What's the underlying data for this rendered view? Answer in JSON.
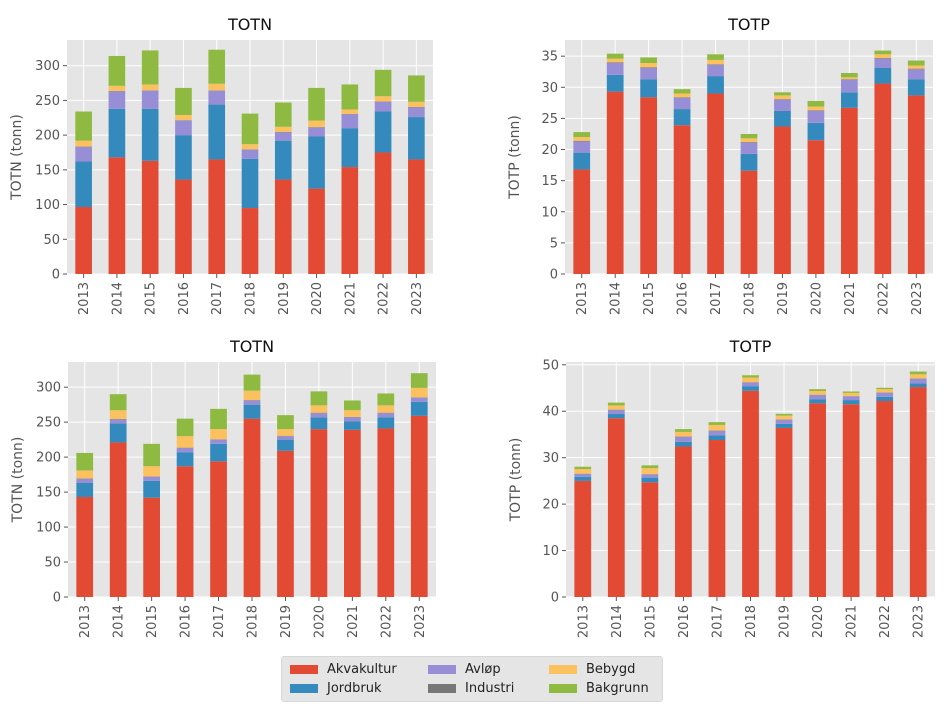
{
  "legend": {
    "placement": "bottom-center",
    "items": [
      {
        "label": "Akvakultur",
        "color": "#E24A33"
      },
      {
        "label": "Jordbruk",
        "color": "#348ABD"
      },
      {
        "label": "Avløp",
        "color": "#988ED5"
      },
      {
        "label": "Industri",
        "color": "#777777"
      },
      {
        "label": "Bebygd",
        "color": "#FBC15E"
      },
      {
        "label": "Bakgrunn",
        "color": "#8EBA42"
      }
    ]
  },
  "chart_data": [
    {
      "type": "bar",
      "stacked": true,
      "title": "TOTN",
      "ylabel": "TOTN (tonn)",
      "xlabel": "",
      "categories": [
        "2013",
        "2014",
        "2015",
        "2016",
        "2017",
        "2018",
        "2019",
        "2020",
        "2021",
        "2022",
        "2023"
      ],
      "ylim": [
        0,
        337
      ],
      "yticks": [
        0,
        50,
        100,
        150,
        200,
        250,
        300
      ],
      "grid": true,
      "series": [
        {
          "name": "Akvakultur",
          "values": [
            96.5,
            168,
            163,
            136,
            165,
            95,
            136,
            123,
            154,
            175,
            165
          ]
        },
        {
          "name": "Jordbruk",
          "values": [
            65.5,
            70,
            75,
            64,
            79,
            71,
            56,
            75,
            56,
            59,
            61
          ]
        },
        {
          "name": "Avløp",
          "values": [
            21,
            25,
            26,
            21,
            20,
            13,
            12,
            13,
            20,
            14,
            14
          ]
        },
        {
          "name": "Industri",
          "values": [
            0.5,
            0.5,
            0.5,
            0.5,
            0.5,
            0.5,
            0.5,
            0.5,
            0.5,
            0.5,
            0.5
          ]
        },
        {
          "name": "Bebygd",
          "values": [
            8.5,
            7.5,
            8.5,
            7.5,
            9.5,
            7.5,
            7.5,
            9.5,
            6.5,
            7.5,
            7.5
          ]
        },
        {
          "name": "Bakgrunn",
          "values": [
            42,
            43,
            49,
            39,
            49,
            44,
            35,
            47,
            36,
            38,
            38
          ]
        }
      ]
    },
    {
      "type": "bar",
      "stacked": true,
      "title": "TOTP",
      "ylabel": "TOTP (tonn)",
      "xlabel": "",
      "categories": [
        "2013",
        "2014",
        "2015",
        "2016",
        "2017",
        "2018",
        "2019",
        "2020",
        "2021",
        "2022",
        "2023"
      ],
      "ylim": [
        0,
        37.6
      ],
      "yticks": [
        0,
        5,
        10,
        15,
        20,
        25,
        30,
        35
      ],
      "grid": true,
      "series": [
        {
          "name": "Akvakultur",
          "values": [
            16.8,
            29.3,
            28.4,
            23.9,
            29.0,
            16.6,
            23.7,
            21.5,
            26.7,
            30.6,
            28.7
          ]
        },
        {
          "name": "Jordbruk",
          "values": [
            2.7,
            2.7,
            2.9,
            2.6,
            2.8,
            2.7,
            2.5,
            2.8,
            2.5,
            2.5,
            2.6
          ]
        },
        {
          "name": "Avløp",
          "values": [
            1.8,
            1.9,
            1.8,
            1.8,
            1.8,
            1.8,
            1.8,
            1.9,
            2.0,
            1.5,
            1.6
          ]
        },
        {
          "name": "Industri",
          "values": [
            0.1,
            0.1,
            0.1,
            0.1,
            0.1,
            0.1,
            0.1,
            0.1,
            0.1,
            0.1,
            0.1
          ]
        },
        {
          "name": "Bebygd",
          "values": [
            0.6,
            0.6,
            0.7,
            0.6,
            0.7,
            0.6,
            0.6,
            0.6,
            0.3,
            0.6,
            0.5
          ]
        },
        {
          "name": "Bakgrunn",
          "values": [
            0.8,
            0.8,
            0.9,
            0.7,
            0.9,
            0.7,
            0.5,
            0.9,
            0.7,
            0.6,
            0.8
          ]
        }
      ]
    },
    {
      "type": "bar",
      "stacked": true,
      "title": "TOTN",
      "ylabel": "TOTN (tonn)",
      "xlabel": "",
      "categories": [
        "2013",
        "2014",
        "2015",
        "2016",
        "2017",
        "2018",
        "2019",
        "2020",
        "2021",
        "2022",
        "2023"
      ],
      "ylim": [
        0,
        336
      ],
      "yticks": [
        0,
        50,
        100,
        150,
        200,
        250,
        300
      ],
      "grid": true,
      "series": [
        {
          "name": "Akvakultur",
          "values": [
            143,
            221,
            142,
            187,
            194,
            255,
            209,
            240,
            239,
            241,
            259
          ]
        },
        {
          "name": "Jordbruk",
          "values": [
            20,
            27,
            24,
            20,
            25,
            20,
            16,
            17,
            12,
            16,
            20
          ]
        },
        {
          "name": "Avløp",
          "values": [
            6,
            6,
            6,
            6,
            6,
            6,
            5,
            6,
            6,
            6,
            6
          ]
        },
        {
          "name": "Industri",
          "values": [
            0.5,
            0.5,
            0.5,
            0.5,
            0.5,
            0.5,
            0.5,
            0.5,
            0.5,
            0.5,
            0.5
          ]
        },
        {
          "name": "Bebygd",
          "values": [
            11.5,
            12.5,
            14.5,
            16.5,
            14.5,
            13.5,
            9.5,
            10.5,
            9.5,
            10.5,
            13.5
          ]
        },
        {
          "name": "Bakgrunn",
          "values": [
            25,
            23,
            32,
            25,
            29,
            23,
            20,
            20,
            14,
            17,
            21
          ]
        }
      ]
    },
    {
      "type": "bar",
      "stacked": true,
      "title": "TOTP",
      "ylabel": "TOTP (tonn)",
      "xlabel": "",
      "categories": [
        "2013",
        "2014",
        "2015",
        "2016",
        "2017",
        "2018",
        "2019",
        "2020",
        "2021",
        "2022",
        "2023"
      ],
      "ylim": [
        0,
        50.6
      ],
      "yticks": [
        0,
        10,
        20,
        30,
        40,
        50
      ],
      "grid": true,
      "series": [
        {
          "name": "Akvakultur",
          "values": [
            25.0,
            38.5,
            24.7,
            32.4,
            33.8,
            44.4,
            36.4,
            41.7,
            41.5,
            42.2,
            45.2
          ]
        },
        {
          "name": "Jordbruk",
          "values": [
            0.9,
            0.9,
            1.0,
            1.0,
            1.0,
            1.0,
            0.9,
            0.9,
            0.9,
            0.9,
            0.8
          ]
        },
        {
          "name": "Avløp",
          "values": [
            0.6,
            0.9,
            0.7,
            1.1,
            1.0,
            0.8,
            0.9,
            0.9,
            0.8,
            0.9,
            1.0
          ]
        },
        {
          "name": "Industri",
          "values": [
            0.05,
            0.05,
            0.05,
            0.05,
            0.05,
            0.05,
            0.05,
            0.05,
            0.05,
            0.05,
            0.05
          ]
        },
        {
          "name": "Bebygd",
          "values": [
            1.0,
            0.9,
            1.3,
            1.0,
            1.2,
            1.0,
            0.8,
            0.8,
            0.7,
            0.7,
            0.9
          ]
        },
        {
          "name": "Bakgrunn",
          "values": [
            0.5,
            0.6,
            0.6,
            0.6,
            0.6,
            0.5,
            0.4,
            0.4,
            0.3,
            0.3,
            0.6
          ]
        }
      ]
    }
  ]
}
